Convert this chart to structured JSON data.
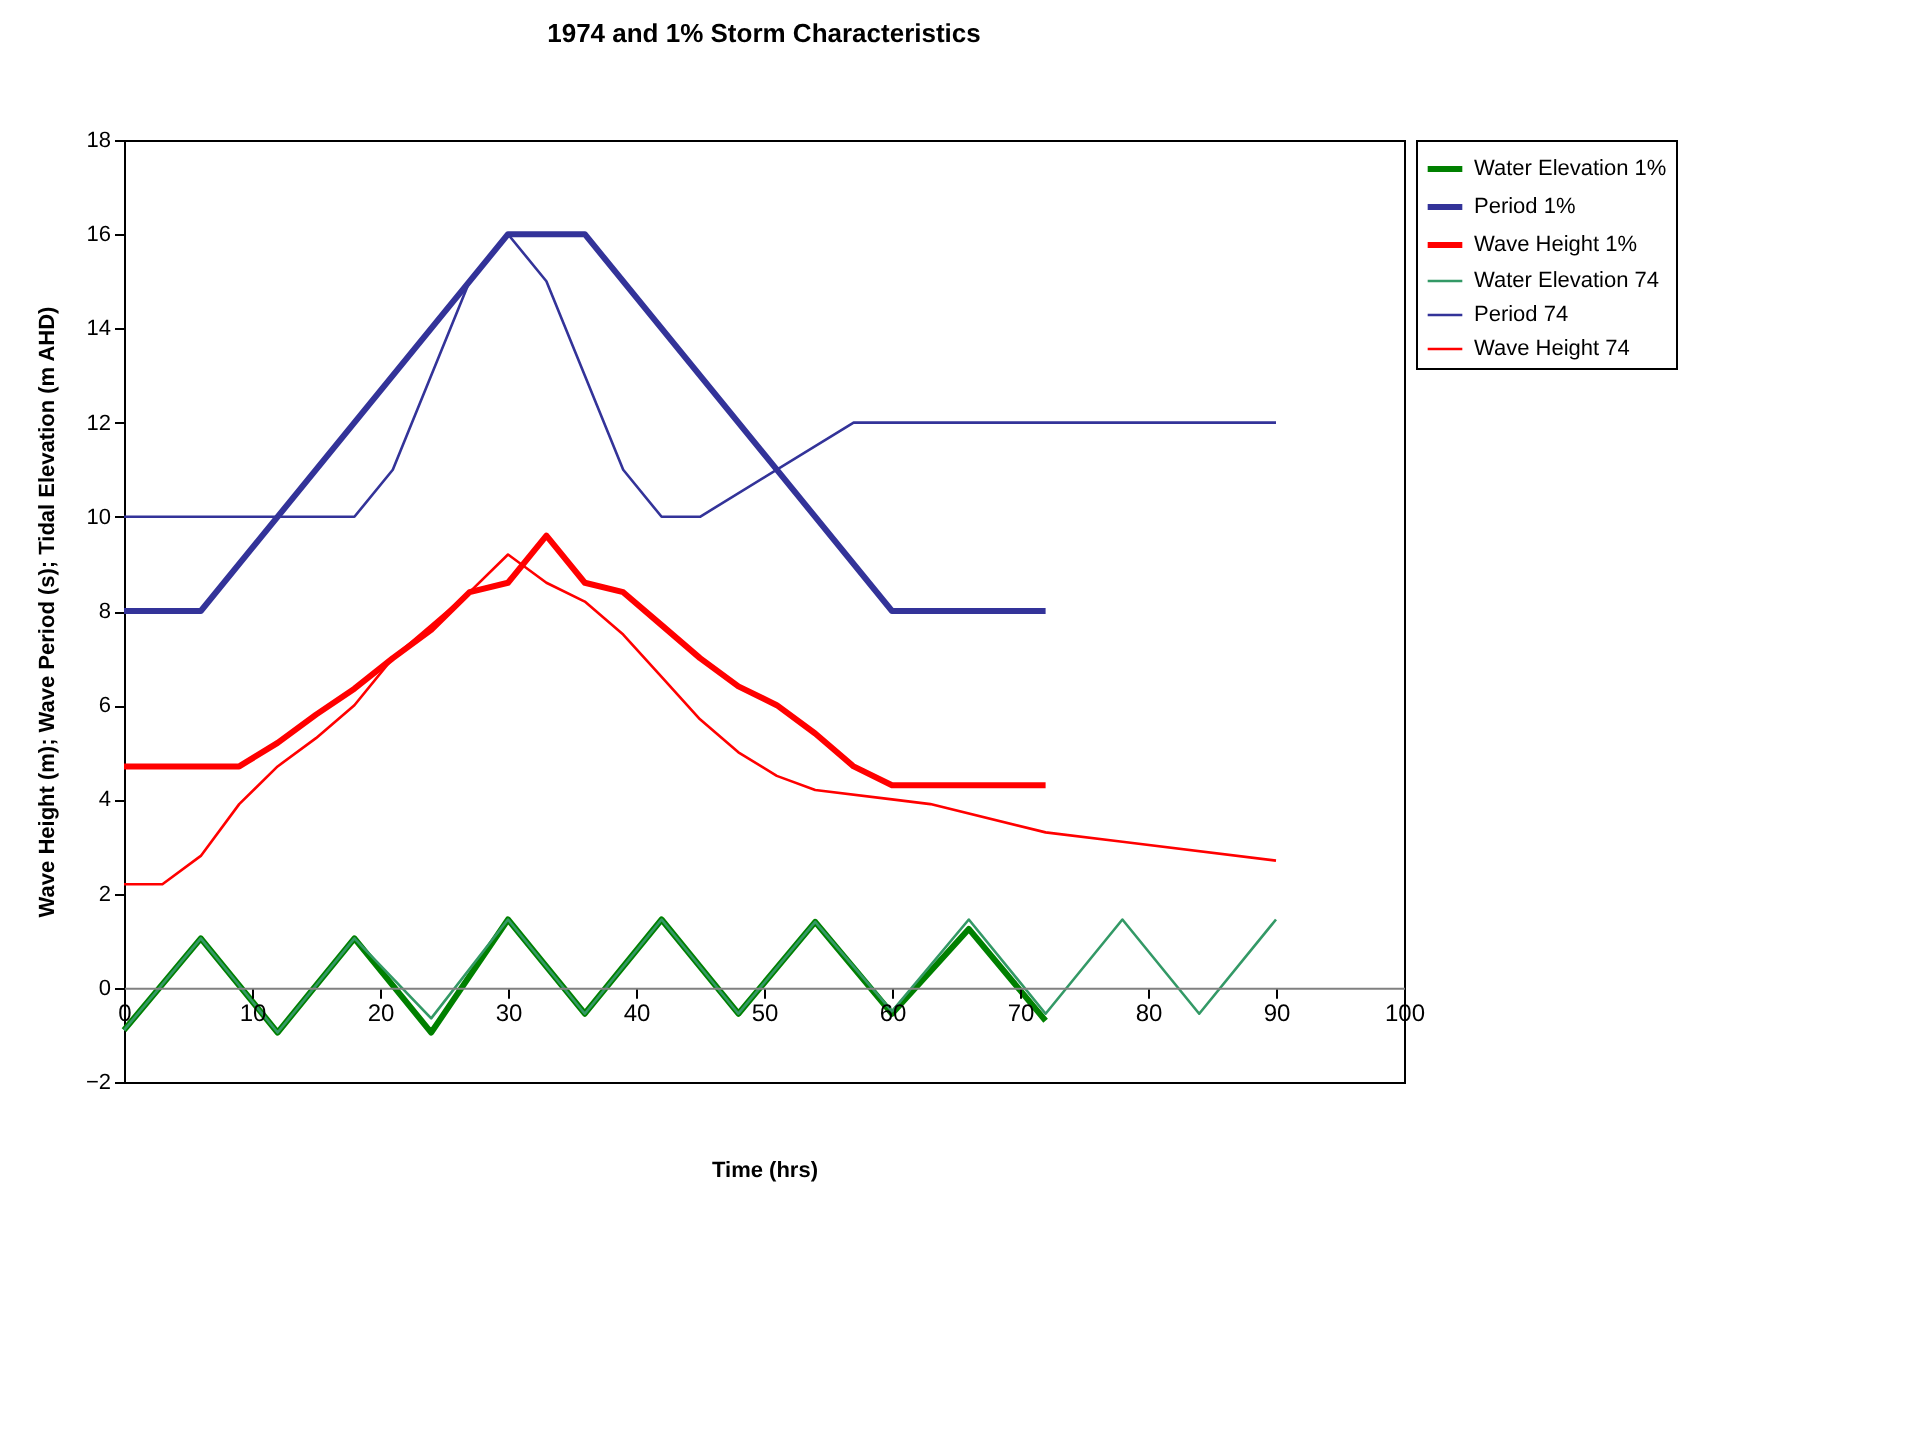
{
  "chart_data": {
    "type": "line",
    "title": "1974 and 1% Storm Characteristics",
    "xlabel": "Time (hrs)",
    "ylabel": "Wave Height (m); Wave Period (s); Tidal Elevation (m AHD)",
    "xlim": [
      0,
      100
    ],
    "xticks": [
      0,
      10,
      20,
      30,
      40,
      50,
      60,
      70,
      80,
      90,
      100
    ],
    "ylim": [
      -2,
      18
    ],
    "yticks": [
      -2,
      0,
      2,
      4,
      6,
      8,
      10,
      12,
      14,
      16,
      18
    ],
    "grid": false,
    "legend": "right",
    "marker": "none",
    "line_style": "solid",
    "series": [
      {
        "name": "Water Elevation 1%",
        "color": "#008000",
        "x": [
          0,
          6,
          12,
          18,
          24,
          30,
          36,
          42,
          48,
          54,
          60,
          66,
          72
        ],
        "values": [
          -0.9,
          1.05,
          -0.95,
          1.05,
          -0.95,
          1.45,
          -0.55,
          1.45,
          -0.55,
          1.4,
          -0.55,
          1.25,
          -0.7
        ]
      },
      {
        "name": "Period 1%",
        "color": "#333399",
        "x": [
          0,
          3,
          6,
          30,
          36,
          60,
          69,
          72
        ],
        "values": [
          8,
          8,
          8,
          16,
          16,
          8,
          8,
          8
        ]
      },
      {
        "name": "Wave Height 1%",
        "color": "#ff0000",
        "x": [
          0,
          3,
          9,
          12,
          15,
          18,
          21,
          24,
          27,
          30,
          33,
          36,
          39,
          42,
          45,
          48,
          51,
          54,
          57,
          60,
          69,
          72
        ],
        "values": [
          4.7,
          4.7,
          4.7,
          5.2,
          5.8,
          6.35,
          7.0,
          7.6,
          8.4,
          8.6,
          9.6,
          8.6,
          8.4,
          7.7,
          7.0,
          6.4,
          6.0,
          5.4,
          4.7,
          4.3,
          4.3,
          4.3
        ]
      },
      {
        "name": "Water Elevation 74",
        "color": "#339966",
        "x": [
          0,
          6,
          12,
          18,
          24,
          30,
          36,
          42,
          48,
          54,
          60,
          66,
          72,
          78,
          84,
          90
        ],
        "values": [
          -0.9,
          1.05,
          -0.95,
          1.05,
          -0.65,
          1.45,
          -0.55,
          1.45,
          -0.55,
          1.4,
          -0.5,
          1.45,
          -0.55,
          1.45,
          -0.55,
          1.45
        ]
      },
      {
        "name": "Period 74",
        "color": "#333399",
        "x": [
          0,
          3,
          18,
          21,
          27,
          30,
          33,
          36,
          39,
          42,
          45,
          57,
          87,
          90
        ],
        "values": [
          10,
          10,
          10,
          11,
          15,
          16,
          15,
          13,
          11,
          10,
          10,
          12,
          12,
          12
        ]
      },
      {
        "name": "Wave Height 74",
        "color": "#ff0000",
        "x": [
          0,
          3,
          6,
          9,
          12,
          15,
          18,
          21,
          24,
          27,
          30,
          33,
          36,
          39,
          42,
          45,
          48,
          51,
          54,
          60,
          63,
          72,
          78,
          90
        ],
        "values": [
          2.2,
          2.2,
          2.8,
          3.9,
          4.7,
          5.3,
          6.0,
          7.0,
          7.7,
          8.4,
          9.2,
          8.6,
          8.2,
          7.5,
          6.6,
          5.7,
          5.0,
          4.5,
          4.2,
          4.0,
          3.9,
          3.3,
          3.1,
          2.7
        ]
      }
    ]
  }
}
